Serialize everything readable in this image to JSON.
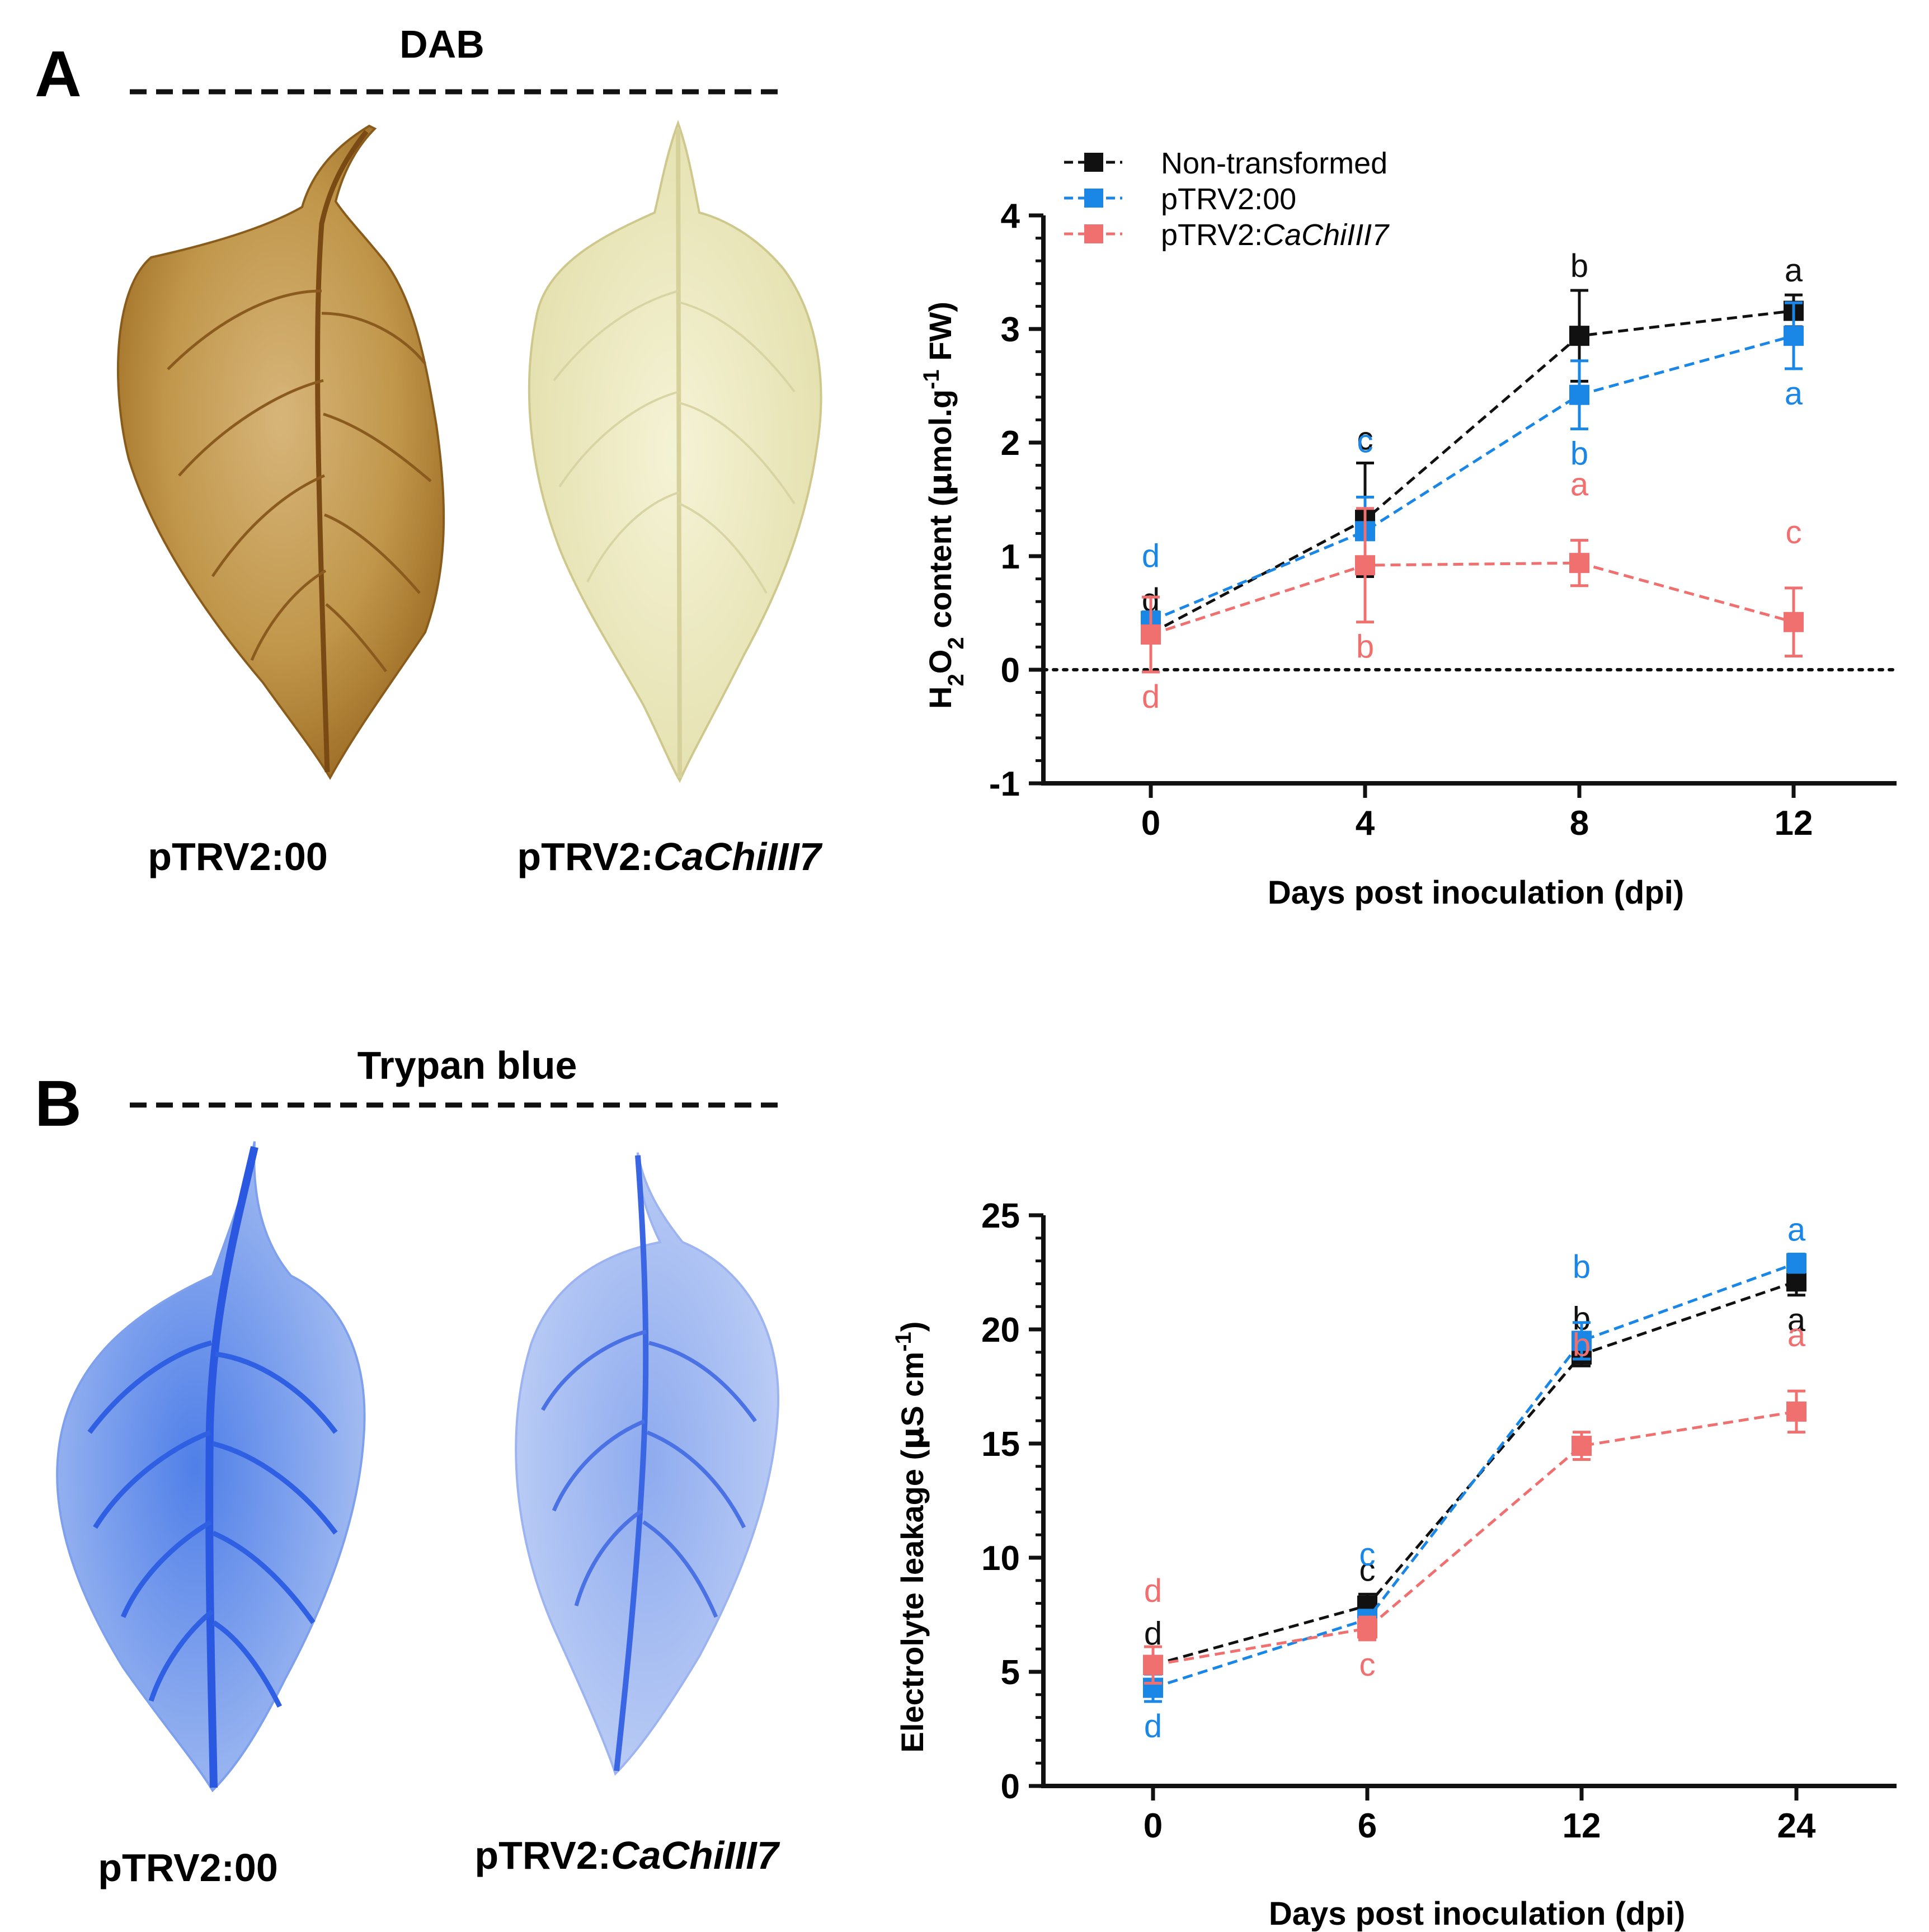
{
  "colors": {
    "black": "#111111",
    "blue": "#1a86e6",
    "red": "#f07070",
    "dab_leaf1": "#b8862e",
    "dab_leaf2": "#ecebc4",
    "trypan_light": "#b7c9f4",
    "trypan_dark": "#2f62e6"
  },
  "panels": {
    "A": {
      "letter": "A",
      "stain": "DAB",
      "leaf_left": "pTRV2:00",
      "leaf_right_prefix": "pTRV2:",
      "leaf_right_gene": "CaChiIII7"
    },
    "B": {
      "letter": "B",
      "stain": "Trypan blue",
      "leaf_left": "pTRV2:00",
      "leaf_right_prefix": "pTRV2:",
      "leaf_right_gene": "CaChiIII7"
    }
  },
  "chart_data": [
    {
      "type": "line",
      "xlabel": "Days post inoculation (dpi)",
      "ylabel": "H2O2 content (μmol.g-1 FW)",
      "ylabel_parts": {
        "pre": "H",
        "sub": "2",
        "mid": "O",
        "sub2": "2",
        "post1": " content (",
        "mu": "μ",
        "post2": "mol.g",
        "sup": "-1",
        "post3": " FW)"
      },
      "categories": [
        "0",
        "4",
        "8",
        "12"
      ],
      "ylim": [
        -1,
        4
      ],
      "yticks": [
        "-1",
        "0",
        "1",
        "2",
        "3",
        "4"
      ],
      "zero_reference_line": true,
      "legend": {
        "placement": "top-left",
        "entries": [
          {
            "name": "Non-transformed",
            "gene": ""
          },
          {
            "name": "pTRV2:00",
            "gene": ""
          },
          {
            "name": "pTRV2:",
            "gene": "CaChiIII7"
          }
        ]
      },
      "series": [
        {
          "name": "Non-transformed",
          "color": "black",
          "values": [
            0.32,
            1.32,
            2.94,
            3.16
          ],
          "errors": [
            0.08,
            0.5,
            0.4,
            0.14
          ],
          "letters": [
            "d",
            "c",
            "b",
            "a"
          ],
          "letter_pos": [
            "above",
            "above",
            "above",
            "above"
          ]
        },
        {
          "name": "pTRV2:00",
          "color": "blue",
          "values": [
            0.43,
            1.22,
            2.42,
            2.94
          ],
          "errors": [
            0.08,
            0.3,
            0.3,
            0.29
          ],
          "letters": [
            "d",
            "c",
            "b",
            "a"
          ],
          "letter_pos": [
            "above",
            "above",
            "below",
            "below"
          ]
        },
        {
          "name": "pTRV2:CaChiIII7",
          "color": "red",
          "values": [
            0.31,
            0.92,
            0.94,
            0.42
          ],
          "errors": [
            0.33,
            0.5,
            0.2,
            0.3
          ],
          "letters": [
            "d",
            "b",
            "a",
            "c"
          ],
          "letter_pos": [
            "below",
            "below",
            "above",
            "above"
          ]
        }
      ]
    },
    {
      "type": "line",
      "xlabel": "Days post inoculation (dpi)",
      "ylabel": "Electrolyte leakage (μS cm-1)",
      "ylabel_parts": {
        "pre": "Electrolyte leakage  (",
        "mu": "μ",
        "post": "S cm",
        "sup": "-1",
        "end": ")"
      },
      "categories": [
        "0",
        "6",
        "12",
        "24"
      ],
      "ylim": [
        0,
        25
      ],
      "yticks": [
        "0",
        "5",
        "10",
        "15",
        "20",
        "25"
      ],
      "zero_reference_line": false,
      "series": [
        {
          "name": "Non-transformed",
          "color": "black",
          "values": [
            5.3,
            7.9,
            18.9,
            22.1
          ],
          "errors": [
            0.3,
            0.5,
            0.5,
            0.6
          ],
          "letters": [
            "d",
            "c",
            "b",
            "a"
          ],
          "letter_pos": [
            "above",
            "above",
            "above",
            "below"
          ]
        },
        {
          "name": "pTRV2:00",
          "color": "blue",
          "values": [
            4.3,
            7.3,
            19.5,
            22.9
          ],
          "errors": [
            0.6,
            0.4,
            0.8,
            0.4
          ],
          "letters": [
            "d",
            "c",
            "b",
            "a"
          ],
          "letter_pos": [
            "below",
            "above",
            "above",
            "above"
          ]
        },
        {
          "name": "pTRV2:CaChiIII7",
          "color": "red",
          "values": [
            5.3,
            6.9,
            14.9,
            16.4
          ],
          "errors": [
            0.8,
            0.5,
            0.6,
            0.9
          ],
          "letters": [
            "d",
            "c",
            "b",
            "a"
          ],
          "letter_pos": [
            "above",
            "below",
            "above",
            "above"
          ]
        }
      ]
    }
  ]
}
